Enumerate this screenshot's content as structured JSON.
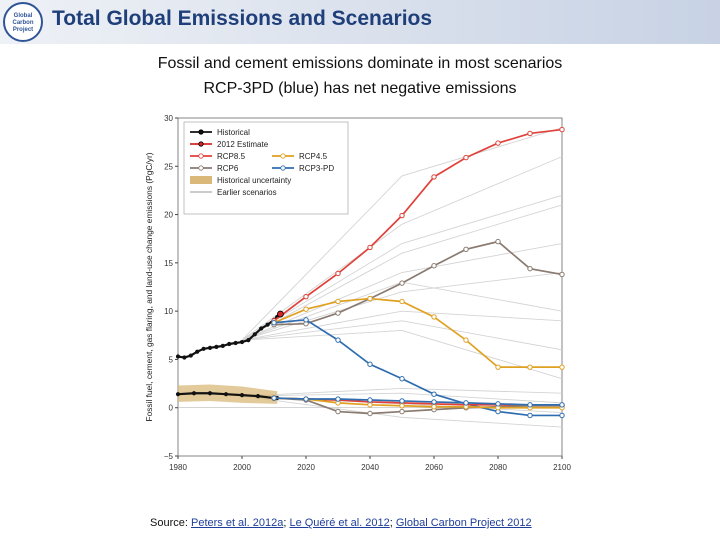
{
  "header": {
    "title": "Total Global Emissions and Scenarios",
    "logo_text": "Global Carbon Project"
  },
  "subtitle": {
    "line1": "Fossil and cement emissions dominate in most scenarios",
    "line2": "RCP-3PD (blue) has net negative emissions"
  },
  "footer": {
    "source_label": "Source:",
    "refs": [
      "Peters et al. 2012a",
      "Le Quéré et al. 2012",
      "Global Carbon Project 2012"
    ],
    "sep": "; "
  },
  "chart_data": {
    "type": "line",
    "ylabel": "Fossil fuel, cement, gas flaring, and land-use change emissions (PgC/yr)",
    "xlabel": "",
    "xlim": [
      1980,
      2100
    ],
    "ylim": [
      -5,
      30
    ],
    "xticks": [
      1980,
      2000,
      2020,
      2040,
      2060,
      2080,
      2100
    ],
    "yticks": [
      -5,
      0,
      5,
      10,
      15,
      20,
      25,
      30
    ],
    "legend": {
      "placement": "top-left",
      "entries": [
        "Historical",
        "2012 Estimate",
        "RCP8.5",
        "RCP4.5",
        "RCP6",
        "RCP3-PD",
        "Historical uncertainty",
        "Earlier scenarios"
      ]
    },
    "colors": {
      "historical": "#111111",
      "estimate": "#d62728",
      "rcp85": "#e0413a",
      "rcp45": "#e0a020",
      "rcp6": "#8a7a70",
      "rcp3pd": "#2f6db0",
      "uncertainty": "#d9b87a",
      "earlier": "#d4d4d4"
    },
    "series": [
      {
        "name": "Historical fossil",
        "key": "historical",
        "x": [
          1980,
          1982,
          1984,
          1986,
          1988,
          1990,
          1992,
          1994,
          1996,
          1998,
          2000,
          2002,
          2004,
          2006,
          2008,
          2010,
          2011
        ],
        "y": [
          5.3,
          5.2,
          5.4,
          5.8,
          6.1,
          6.2,
          6.3,
          6.4,
          6.6,
          6.7,
          6.8,
          7.0,
          7.6,
          8.2,
          8.6,
          9.1,
          9.4
        ]
      },
      {
        "name": "Historical land-use",
        "key": "historical",
        "x": [
          1980,
          1985,
          1990,
          1995,
          2000,
          2005,
          2010,
          2011
        ],
        "y": [
          1.4,
          1.5,
          1.5,
          1.4,
          1.3,
          1.2,
          1.0,
          1.0
        ]
      },
      {
        "name": "RCP8.5",
        "key": "rcp85",
        "x": [
          2010,
          2020,
          2030,
          2040,
          2050,
          2060,
          2070,
          2080,
          2090,
          2100
        ],
        "y": [
          9.0,
          11.5,
          13.9,
          16.6,
          19.9,
          23.9,
          25.9,
          27.4,
          28.4,
          28.8
        ]
      },
      {
        "name": "RCP6",
        "key": "rcp6",
        "x": [
          2010,
          2020,
          2030,
          2040,
          2050,
          2060,
          2070,
          2080,
          2090,
          2100
        ],
        "y": [
          8.6,
          8.7,
          9.8,
          11.3,
          12.9,
          14.7,
          16.4,
          17.2,
          14.4,
          13.8
        ]
      },
      {
        "name": "RCP4.5",
        "key": "rcp45",
        "x": [
          2010,
          2020,
          2030,
          2040,
          2050,
          2060,
          2070,
          2080,
          2090,
          2100
        ],
        "y": [
          8.8,
          10.2,
          11.0,
          11.3,
          11.0,
          9.4,
          7.0,
          4.2,
          4.2,
          4.2
        ]
      },
      {
        "name": "RCP3-PD",
        "key": "rcp3pd",
        "x": [
          2010,
          2020,
          2030,
          2040,
          2050,
          2060,
          2070,
          2080,
          2090,
          2100
        ],
        "y": [
          8.8,
          9.1,
          7.0,
          4.5,
          3.0,
          1.4,
          0.4,
          -0.4,
          -0.8,
          -0.8
        ]
      },
      {
        "name": "RCP land-use RCP8.5",
        "key": "rcp85",
        "x": [
          2010,
          2020,
          2030,
          2040,
          2050,
          2060,
          2070,
          2080,
          2090,
          2100
        ],
        "y": [
          1.0,
          0.9,
          0.8,
          0.6,
          0.5,
          0.4,
          0.3,
          0.3,
          0.2,
          0.2
        ]
      },
      {
        "name": "RCP land-use RCP6",
        "key": "rcp6",
        "x": [
          2010,
          2020,
          2030,
          2040,
          2050,
          2060,
          2070,
          2080,
          2090,
          2100
        ],
        "y": [
          1.0,
          0.8,
          -0.4,
          -0.6,
          -0.4,
          -0.2,
          0.0,
          0.1,
          0.2,
          0.2
        ]
      },
      {
        "name": "RCP land-use RCP4.5",
        "key": "rcp45",
        "x": [
          2010,
          2020,
          2030,
          2040,
          2050,
          2060,
          2070,
          2080,
          2090,
          2100
        ],
        "y": [
          1.0,
          0.9,
          0.5,
          0.3,
          0.2,
          0.1,
          0.1,
          0.0,
          0.0,
          0.0
        ]
      },
      {
        "name": "RCP land-use RCP3-PD",
        "key": "rcp3pd",
        "x": [
          2010,
          2020,
          2030,
          2040,
          2050,
          2060,
          2070,
          2080,
          2090,
          2100
        ],
        "y": [
          1.0,
          0.9,
          0.9,
          0.8,
          0.7,
          0.6,
          0.5,
          0.4,
          0.3,
          0.3
        ]
      }
    ],
    "uncertainty_band": {
      "x": [
        1980,
        1990,
        2000,
        2011
      ],
      "upper": [
        2.3,
        2.4,
        2.2,
        1.7
      ],
      "lower": [
        0.6,
        0.7,
        0.5,
        0.4
      ]
    },
    "earlier_scenarios": [
      {
        "x": [
          2000,
          2050,
          2100
        ],
        "y": [
          7,
          24,
          29
        ]
      },
      {
        "x": [
          2000,
          2050,
          2100
        ],
        "y": [
          7,
          19,
          26
        ]
      },
      {
        "x": [
          2000,
          2050,
          2100
        ],
        "y": [
          7,
          16,
          21
        ]
      },
      {
        "x": [
          2000,
          2050,
          2100
        ],
        "y": [
          7,
          14,
          17
        ]
      },
      {
        "x": [
          2000,
          2050,
          2100
        ],
        "y": [
          7,
          12,
          14
        ]
      },
      {
        "x": [
          2000,
          2050,
          2100
        ],
        "y": [
          7,
          10,
          9
        ]
      },
      {
        "x": [
          2000,
          2050,
          2100
        ],
        "y": [
          7,
          9,
          6
        ]
      },
      {
        "x": [
          2000,
          2050,
          2100
        ],
        "y": [
          7,
          8,
          3
        ]
      },
      {
        "x": [
          2000,
          2050,
          2100
        ],
        "y": [
          7,
          13,
          10
        ]
      },
      {
        "x": [
          2000,
          2050,
          2100
        ],
        "y": [
          7,
          17,
          22
        ]
      },
      {
        "x": [
          2000,
          2050,
          2100
        ],
        "y": [
          1.2,
          1.5,
          0.5
        ]
      },
      {
        "x": [
          2000,
          2050,
          2100
        ],
        "y": [
          1.2,
          0.4,
          -0.5
        ]
      },
      {
        "x": [
          2000,
          2050,
          2100
        ],
        "y": [
          1.2,
          -1,
          -2
        ]
      },
      {
        "x": [
          2000,
          2050,
          2100
        ],
        "y": [
          1.2,
          2,
          1.5
        ]
      }
    ]
  }
}
